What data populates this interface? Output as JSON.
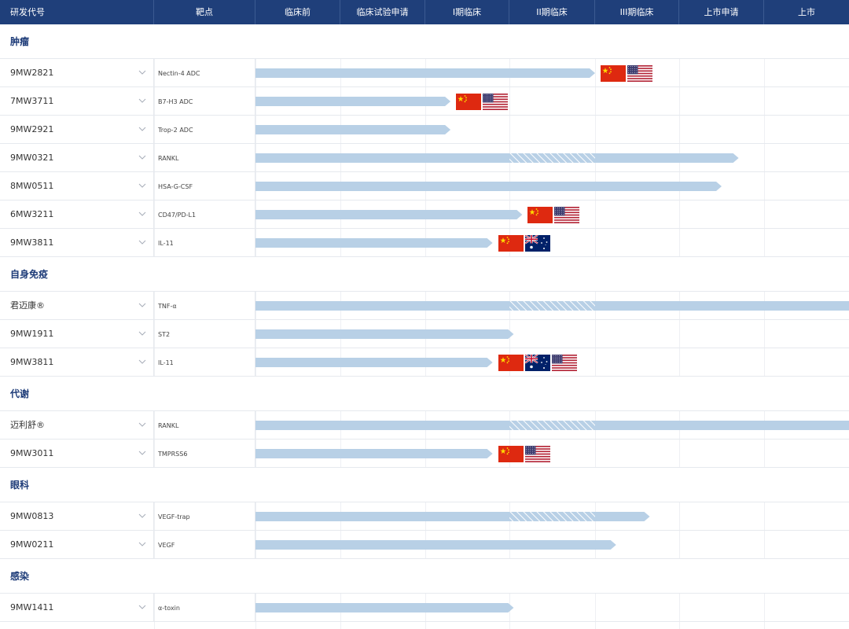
{
  "header": {
    "columns": [
      "研发代号",
      "靶点",
      "临床前",
      "临床试验申请",
      "I期临床",
      "II期临床",
      "III期临床",
      "上市申请",
      "上市"
    ]
  },
  "colors": {
    "header_bg": "#1f3f7a",
    "bar": "#b8d0e6",
    "category_text": "#1d3b78"
  },
  "icons": {
    "chevron": "chevron-down-icon",
    "china": "china-flag-icon",
    "usa": "usa-flag-icon",
    "australia": "australia-flag-icon"
  },
  "chart_data": {
    "type": "gantt-pipeline",
    "stages": [
      "临床前",
      "临床试验申请",
      "I期临床",
      "II期临床",
      "III期临床",
      "上市申请",
      "上市"
    ],
    "progress_unit": "stage columns completed (0-7)",
    "categories": [
      {
        "name": "肿瘤",
        "drugs": [
          {
            "code": "9MW2821",
            "target": "Nectin-4 ADC",
            "progress": 4.0,
            "flags": [
              "china",
              "usa"
            ]
          },
          {
            "code": "7MW3711",
            "target": "B7-H3 ADC",
            "progress": 2.3,
            "flags": [
              "china",
              "usa"
            ]
          },
          {
            "code": "9MW2921",
            "target": "Trop-2 ADC",
            "progress": 2.3,
            "flags": []
          },
          {
            "code": "9MW0321",
            "target": "RANKL",
            "progress": 5.7,
            "hatch": [
              3,
              4
            ],
            "flags": []
          },
          {
            "code": "8MW0511",
            "target": "HSA-G-CSF",
            "progress": 5.5,
            "flags": []
          },
          {
            "code": "6MW3211",
            "target": "CD47/PD-L1",
            "progress": 3.15,
            "flags": [
              "china",
              "usa"
            ]
          },
          {
            "code": "9MW3811",
            "target": "IL-11",
            "progress": 2.8,
            "flags": [
              "china",
              "australia"
            ]
          }
        ]
      },
      {
        "name": "自身免疫",
        "drugs": [
          {
            "code": "君迈康®",
            "target": "TNF-α",
            "progress": 7.0,
            "hatch": [
              3,
              4
            ],
            "flags": []
          },
          {
            "code": "9MW1911",
            "target": "ST2",
            "progress": 3.05,
            "flags": []
          },
          {
            "code": "9MW3811",
            "target": "IL-11",
            "progress": 2.8,
            "flags": [
              "china",
              "australia",
              "usa"
            ]
          }
        ]
      },
      {
        "name": "代谢",
        "drugs": [
          {
            "code": "迈利舒®",
            "target": "RANKL",
            "progress": 7.0,
            "hatch": [
              3,
              4
            ],
            "flags": []
          },
          {
            "code": "9MW3011",
            "target": "TMPRSS6",
            "progress": 2.8,
            "flags": [
              "china",
              "usa"
            ]
          }
        ]
      },
      {
        "name": "眼科",
        "drugs": [
          {
            "code": "9MW0813",
            "target": "VEGF-trap",
            "progress": 4.65,
            "hatch": [
              3,
              4
            ],
            "flags": []
          },
          {
            "code": "9MW0211",
            "target": "VEGF",
            "progress": 4.25,
            "flags": []
          }
        ]
      },
      {
        "name": "感染",
        "drugs": [
          {
            "code": "9MW1411",
            "target": "α-toxin",
            "progress": 3.05,
            "flags": []
          }
        ]
      }
    ]
  }
}
